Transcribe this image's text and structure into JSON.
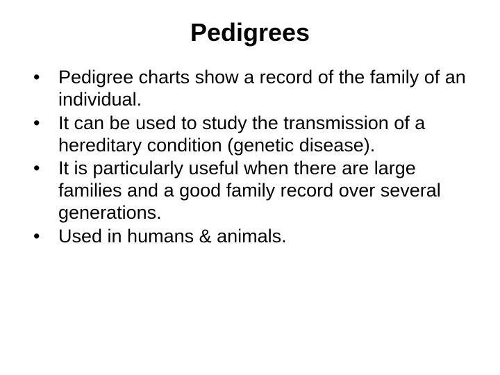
{
  "slide": {
    "title": "Pedigrees",
    "bullets": [
      "Pedigree charts show a record of the family of an individual.",
      "It can be used to study the transmission of a hereditary condition (genetic disease).",
      "It is particularly useful when there are large families and a good family record over several generations.",
      "Used in humans & animals."
    ],
    "title_fontsize": 36,
    "body_fontsize": 27,
    "background_color": "#ffffff",
    "text_color": "#000000",
    "font_family": "Arial"
  }
}
